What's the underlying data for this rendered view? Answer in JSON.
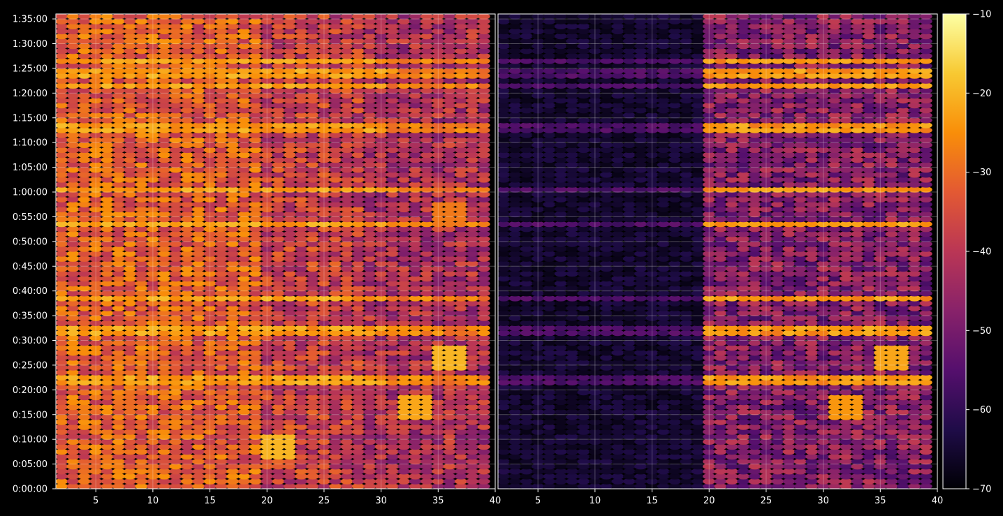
{
  "chart_data": {
    "type": "heatmap",
    "title": "",
    "background": "#000000",
    "colormap": "inferno",
    "color_range": [
      -70,
      -10
    ],
    "colorbar_ticks": [
      -10,
      -20,
      -30,
      -40,
      -50,
      -60,
      -70
    ],
    "colorbar_tick_labels": [
      "−10",
      "−20",
      "−30",
      "−40",
      "−50",
      "−60",
      "−70"
    ],
    "grid": true,
    "y_axis": {
      "label": "",
      "range_seconds": [
        0,
        5760
      ],
      "tick_values_seconds": [
        0,
        300,
        600,
        900,
        1200,
        1500,
        1800,
        2100,
        2400,
        2700,
        3000,
        3300,
        3600,
        3900,
        4200,
        4500,
        4800,
        5100,
        5400,
        5700
      ],
      "tick_labels": [
        "0:00:00",
        "0:05:00",
        "0:10:00",
        "0:15:00",
        "0:20:00",
        "0:25:00",
        "0:30:00",
        "0:35:00",
        "0:40:00",
        "0:45:00",
        "0:50:00",
        "0:55:00",
        "1:00:00",
        "1:05:00",
        "1:10:00",
        "1:15:00",
        "1:20:00",
        "1:25:00",
        "1:30:00",
        "1:35:00"
      ]
    },
    "panels": [
      {
        "name": "",
        "x_range": [
          1.5,
          40
        ],
        "x_ticks": [
          5,
          10,
          15,
          20,
          25,
          30,
          35,
          40
        ],
        "x_tick_labels": [
          "5",
          "10",
          "15",
          "20",
          "25",
          "30",
          "35",
          "40"
        ],
        "channels": [
          2,
          39
        ],
        "typical_level_db": -38,
        "overall_pattern": "dense orange/purple across all channels; brighter in lower channels"
      },
      {
        "name": "",
        "x_range": [
          1.5,
          40
        ],
        "x_ticks": [
          5,
          10,
          15,
          20,
          25,
          30,
          35,
          40
        ],
        "x_tick_labels": [
          "5",
          "10",
          "15",
          "20",
          "25",
          "30",
          "35",
          "40"
        ],
        "channels": [
          2,
          39
        ],
        "typical_level_db": -48,
        "overall_pattern": "mostly black (≈ −70) for channels 2–19; purple/orange for channels 20–39"
      }
    ],
    "bright_bands_time_seconds": [
      1290,
      1890,
      2265,
      3195,
      3615,
      4350,
      4875,
      5010,
      5160
    ],
    "bright_band_peak_db": -20,
    "hot_spots": [
      {
        "panel": 1,
        "channel": 21,
        "time_seconds": 480,
        "value_db": -20
      },
      {
        "panel": 1,
        "channel": 36,
        "time_seconds": 1560,
        "value_db": -20
      },
      {
        "panel": 1,
        "channel": 33,
        "time_seconds": 960,
        "value_db": -22
      },
      {
        "panel": 1,
        "channel": 36,
        "time_seconds": 3300,
        "value_db": -28
      },
      {
        "panel": 2,
        "channel": 36,
        "time_seconds": 1560,
        "value_db": -22
      },
      {
        "panel": 2,
        "channel": 32,
        "time_seconds": 960,
        "value_db": -24
      }
    ]
  }
}
